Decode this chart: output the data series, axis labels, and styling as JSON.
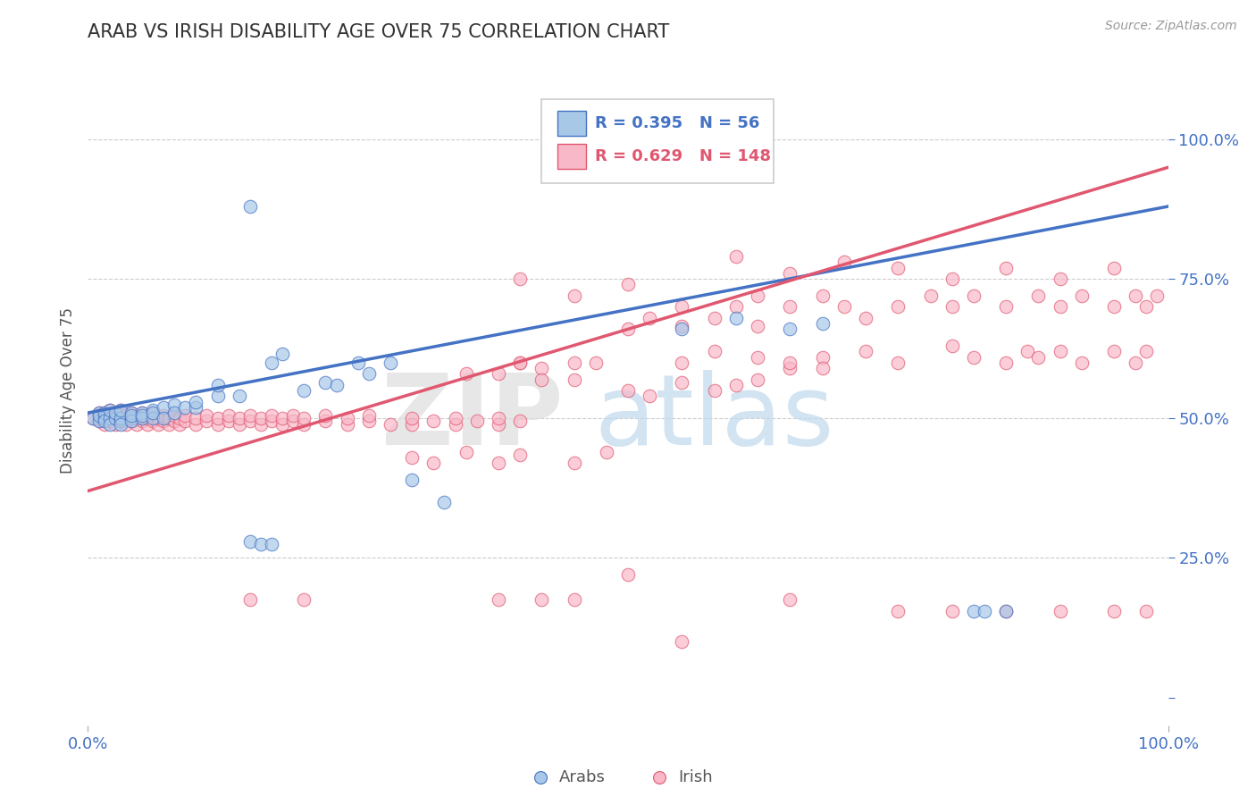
{
  "title": "ARAB VS IRISH DISABILITY AGE OVER 75 CORRELATION CHART",
  "source": "Source: ZipAtlas.com",
  "ylabel": "Disability Age Over 75",
  "arab_color": "#A8C8E8",
  "irish_color": "#F8B8C8",
  "arab_line_color": "#4472C4",
  "irish_line_color": "#E05870",
  "arab_R": 0.395,
  "arab_N": 56,
  "irish_R": 0.629,
  "irish_N": 148,
  "legend_label_arab": "Arabs",
  "legend_label_irish": "Irish",
  "xlim": [
    0.0,
    1.0
  ],
  "ylim": [
    -0.05,
    1.15
  ],
  "yticks": [
    0.0,
    0.25,
    0.5,
    0.75,
    1.0
  ],
  "ytick_labels": [
    "",
    "25.0%",
    "50.0%",
    "75.0%",
    "100.0%"
  ],
  "xticks": [
    0.0,
    1.0
  ],
  "xtick_labels": [
    "0.0%",
    "100.0%"
  ],
  "arab_line": [
    0.0,
    0.51,
    1.0,
    0.88
  ],
  "irish_line": [
    0.0,
    0.37,
    1.0,
    0.95
  ],
  "arab_scatter": [
    [
      0.005,
      0.5
    ],
    [
      0.01,
      0.51
    ],
    [
      0.01,
      0.495
    ],
    [
      0.01,
      0.505
    ],
    [
      0.015,
      0.5
    ],
    [
      0.015,
      0.51
    ],
    [
      0.015,
      0.495
    ],
    [
      0.02,
      0.5
    ],
    [
      0.02,
      0.515
    ],
    [
      0.02,
      0.49
    ],
    [
      0.025,
      0.5
    ],
    [
      0.025,
      0.51
    ],
    [
      0.03,
      0.495
    ],
    [
      0.03,
      0.5
    ],
    [
      0.03,
      0.515
    ],
    [
      0.03,
      0.49
    ],
    [
      0.04,
      0.5
    ],
    [
      0.04,
      0.51
    ],
    [
      0.04,
      0.495
    ],
    [
      0.04,
      0.505
    ],
    [
      0.05,
      0.51
    ],
    [
      0.05,
      0.5
    ],
    [
      0.05,
      0.505
    ],
    [
      0.06,
      0.515
    ],
    [
      0.06,
      0.5
    ],
    [
      0.06,
      0.51
    ],
    [
      0.07,
      0.52
    ],
    [
      0.07,
      0.5
    ],
    [
      0.08,
      0.525
    ],
    [
      0.08,
      0.51
    ],
    [
      0.09,
      0.52
    ],
    [
      0.1,
      0.52
    ],
    [
      0.1,
      0.53
    ],
    [
      0.12,
      0.54
    ],
    [
      0.12,
      0.56
    ],
    [
      0.14,
      0.54
    ],
    [
      0.17,
      0.6
    ],
    [
      0.18,
      0.615
    ],
    [
      0.2,
      0.55
    ],
    [
      0.22,
      0.565
    ],
    [
      0.23,
      0.56
    ],
    [
      0.25,
      0.6
    ],
    [
      0.26,
      0.58
    ],
    [
      0.28,
      0.6
    ],
    [
      0.15,
      0.28
    ],
    [
      0.16,
      0.275
    ],
    [
      0.17,
      0.275
    ],
    [
      0.3,
      0.39
    ],
    [
      0.33,
      0.35
    ],
    [
      0.55,
      0.66
    ],
    [
      0.6,
      0.68
    ],
    [
      0.65,
      0.66
    ],
    [
      0.68,
      0.67
    ],
    [
      0.15,
      0.88
    ],
    [
      0.82,
      0.155
    ],
    [
      0.83,
      0.155
    ],
    [
      0.85,
      0.155
    ]
  ],
  "irish_scatter": [
    [
      0.005,
      0.5
    ],
    [
      0.01,
      0.495
    ],
    [
      0.01,
      0.505
    ],
    [
      0.01,
      0.51
    ],
    [
      0.015,
      0.49
    ],
    [
      0.015,
      0.5
    ],
    [
      0.015,
      0.505
    ],
    [
      0.015,
      0.51
    ],
    [
      0.02,
      0.495
    ],
    [
      0.02,
      0.5
    ],
    [
      0.02,
      0.505
    ],
    [
      0.02,
      0.515
    ],
    [
      0.025,
      0.49
    ],
    [
      0.025,
      0.5
    ],
    [
      0.025,
      0.505
    ],
    [
      0.025,
      0.51
    ],
    [
      0.03,
      0.495
    ],
    [
      0.03,
      0.5
    ],
    [
      0.03,
      0.51
    ],
    [
      0.03,
      0.515
    ],
    [
      0.035,
      0.49
    ],
    [
      0.035,
      0.5
    ],
    [
      0.035,
      0.505
    ],
    [
      0.04,
      0.495
    ],
    [
      0.04,
      0.505
    ],
    [
      0.04,
      0.51
    ],
    [
      0.045,
      0.49
    ],
    [
      0.045,
      0.5
    ],
    [
      0.045,
      0.505
    ],
    [
      0.05,
      0.495
    ],
    [
      0.05,
      0.5
    ],
    [
      0.05,
      0.51
    ],
    [
      0.055,
      0.49
    ],
    [
      0.055,
      0.5
    ],
    [
      0.06,
      0.495
    ],
    [
      0.06,
      0.505
    ],
    [
      0.06,
      0.51
    ],
    [
      0.065,
      0.49
    ],
    [
      0.065,
      0.5
    ],
    [
      0.07,
      0.495
    ],
    [
      0.07,
      0.505
    ],
    [
      0.075,
      0.49
    ],
    [
      0.075,
      0.5
    ],
    [
      0.08,
      0.495
    ],
    [
      0.08,
      0.505
    ],
    [
      0.085,
      0.49
    ],
    [
      0.085,
      0.5
    ],
    [
      0.09,
      0.495
    ],
    [
      0.09,
      0.505
    ],
    [
      0.1,
      0.49
    ],
    [
      0.1,
      0.5
    ],
    [
      0.11,
      0.495
    ],
    [
      0.11,
      0.505
    ],
    [
      0.12,
      0.49
    ],
    [
      0.12,
      0.5
    ],
    [
      0.13,
      0.495
    ],
    [
      0.13,
      0.505
    ],
    [
      0.14,
      0.49
    ],
    [
      0.14,
      0.5
    ],
    [
      0.15,
      0.495
    ],
    [
      0.15,
      0.505
    ],
    [
      0.16,
      0.49
    ],
    [
      0.16,
      0.5
    ],
    [
      0.17,
      0.495
    ],
    [
      0.17,
      0.505
    ],
    [
      0.18,
      0.49
    ],
    [
      0.18,
      0.5
    ],
    [
      0.19,
      0.495
    ],
    [
      0.19,
      0.505
    ],
    [
      0.2,
      0.49
    ],
    [
      0.2,
      0.5
    ],
    [
      0.22,
      0.495
    ],
    [
      0.22,
      0.505
    ],
    [
      0.24,
      0.49
    ],
    [
      0.24,
      0.5
    ],
    [
      0.26,
      0.495
    ],
    [
      0.26,
      0.505
    ],
    [
      0.28,
      0.49
    ],
    [
      0.3,
      0.49
    ],
    [
      0.3,
      0.5
    ],
    [
      0.32,
      0.495
    ],
    [
      0.34,
      0.49
    ],
    [
      0.34,
      0.5
    ],
    [
      0.36,
      0.495
    ],
    [
      0.38,
      0.49
    ],
    [
      0.38,
      0.5
    ],
    [
      0.4,
      0.495
    ],
    [
      0.35,
      0.58
    ],
    [
      0.4,
      0.6
    ],
    [
      0.42,
      0.59
    ],
    [
      0.45,
      0.57
    ],
    [
      0.47,
      0.6
    ],
    [
      0.3,
      0.43
    ],
    [
      0.32,
      0.42
    ],
    [
      0.35,
      0.44
    ],
    [
      0.38,
      0.42
    ],
    [
      0.4,
      0.435
    ],
    [
      0.45,
      0.42
    ],
    [
      0.48,
      0.44
    ],
    [
      0.5,
      0.55
    ],
    [
      0.52,
      0.54
    ],
    [
      0.55,
      0.565
    ],
    [
      0.58,
      0.55
    ],
    [
      0.6,
      0.56
    ],
    [
      0.62,
      0.57
    ],
    [
      0.55,
      0.6
    ],
    [
      0.58,
      0.62
    ],
    [
      0.62,
      0.61
    ],
    [
      0.65,
      0.59
    ],
    [
      0.68,
      0.61
    ],
    [
      0.5,
      0.66
    ],
    [
      0.52,
      0.68
    ],
    [
      0.55,
      0.665
    ],
    [
      0.58,
      0.68
    ],
    [
      0.62,
      0.665
    ],
    [
      0.38,
      0.58
    ],
    [
      0.4,
      0.6
    ],
    [
      0.42,
      0.57
    ],
    [
      0.45,
      0.6
    ],
    [
      0.65,
      0.6
    ],
    [
      0.68,
      0.59
    ],
    [
      0.72,
      0.62
    ],
    [
      0.75,
      0.6
    ],
    [
      0.8,
      0.63
    ],
    [
      0.82,
      0.61
    ],
    [
      0.85,
      0.6
    ],
    [
      0.87,
      0.62
    ],
    [
      0.88,
      0.61
    ],
    [
      0.9,
      0.62
    ],
    [
      0.92,
      0.6
    ],
    [
      0.95,
      0.62
    ],
    [
      0.97,
      0.6
    ],
    [
      0.98,
      0.62
    ],
    [
      0.6,
      0.7
    ],
    [
      0.62,
      0.72
    ],
    [
      0.65,
      0.7
    ],
    [
      0.68,
      0.72
    ],
    [
      0.7,
      0.7
    ],
    [
      0.72,
      0.68
    ],
    [
      0.75,
      0.7
    ],
    [
      0.78,
      0.72
    ],
    [
      0.8,
      0.7
    ],
    [
      0.82,
      0.72
    ],
    [
      0.85,
      0.7
    ],
    [
      0.88,
      0.72
    ],
    [
      0.9,
      0.7
    ],
    [
      0.92,
      0.72
    ],
    [
      0.95,
      0.7
    ],
    [
      0.97,
      0.72
    ],
    [
      0.98,
      0.7
    ],
    [
      0.99,
      0.72
    ],
    [
      0.4,
      0.75
    ],
    [
      0.45,
      0.72
    ],
    [
      0.5,
      0.74
    ],
    [
      0.55,
      0.7
    ],
    [
      0.6,
      0.79
    ],
    [
      0.65,
      0.76
    ],
    [
      0.7,
      0.78
    ],
    [
      0.75,
      0.77
    ],
    [
      0.8,
      0.75
    ],
    [
      0.85,
      0.77
    ],
    [
      0.9,
      0.75
    ],
    [
      0.95,
      0.77
    ],
    [
      0.15,
      0.175
    ],
    [
      0.2,
      0.175
    ],
    [
      0.38,
      0.175
    ],
    [
      0.42,
      0.175
    ],
    [
      0.45,
      0.175
    ],
    [
      0.65,
      0.175
    ],
    [
      0.5,
      0.22
    ],
    [
      0.75,
      0.155
    ],
    [
      0.8,
      0.155
    ],
    [
      0.85,
      0.155
    ],
    [
      0.9,
      0.155
    ],
    [
      0.95,
      0.155
    ],
    [
      0.98,
      0.155
    ],
    [
      0.55,
      0.1
    ]
  ]
}
